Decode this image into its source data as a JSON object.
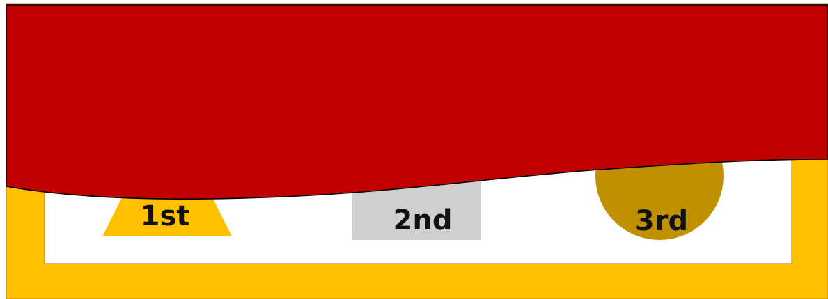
{
  "colors": {
    "frame": "#ffc000",
    "frame_border": "#b07a00",
    "wave": "#c00000",
    "first": "#ffc000",
    "second": "#cfcfcf",
    "third": "#c09000",
    "inner": "#ffffff"
  },
  "places": [
    {
      "label": "1st",
      "shape": "trapezoid"
    },
    {
      "label": "2nd",
      "shape": "rectangle"
    },
    {
      "label": "3rd",
      "shape": "circle"
    }
  ]
}
